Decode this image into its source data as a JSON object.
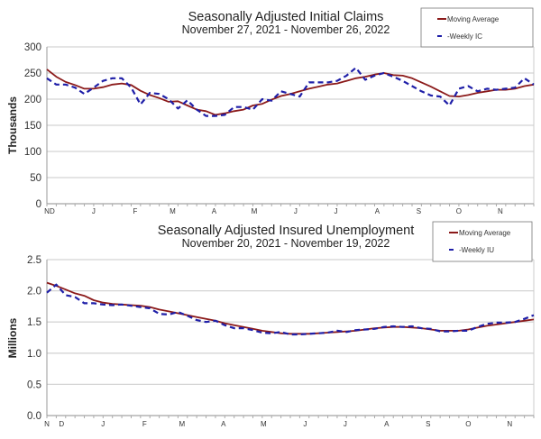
{
  "chart_data": [
    {
      "type": "line",
      "title": "Seasonally Adjusted Initial Claims",
      "subtitle": "November 27, 2021 - November 26, 2022",
      "xlabel": "",
      "ylabel": "Thousands",
      "ylim": [
        0,
        300
      ],
      "yticks": [
        0,
        50,
        100,
        150,
        200,
        250,
        300
      ],
      "grid": true,
      "legend_position": "top-right",
      "x_range": [
        "2021-11-27",
        "2022-11-26"
      ],
      "xtick_labels": [
        {
          "label": "N",
          "date": "2021-11-27"
        },
        {
          "label": "D",
          "date": "2021-12-01"
        },
        {
          "label": "J",
          "date": "2022-01-01"
        },
        {
          "label": "F",
          "date": "2022-02-01"
        },
        {
          "label": "M",
          "date": "2022-03-01"
        },
        {
          "label": "A",
          "date": "2022-04-01"
        },
        {
          "label": "M",
          "date": "2022-05-01"
        },
        {
          "label": "J",
          "date": "2022-06-01"
        },
        {
          "label": "J",
          "date": "2022-07-01"
        },
        {
          "label": "A",
          "date": "2022-08-01"
        },
        {
          "label": "S",
          "date": "2022-09-01"
        },
        {
          "label": "O",
          "date": "2022-10-01"
        },
        {
          "label": "N",
          "date": "2022-11-01"
        }
      ],
      "x": [
        "2021-11-27",
        "2021-12-04",
        "2021-12-11",
        "2021-12-18",
        "2021-12-25",
        "2022-01-01",
        "2022-01-08",
        "2022-01-15",
        "2022-01-22",
        "2022-01-29",
        "2022-02-05",
        "2022-02-12",
        "2022-02-19",
        "2022-02-26",
        "2022-03-05",
        "2022-03-12",
        "2022-03-19",
        "2022-03-26",
        "2022-04-02",
        "2022-04-09",
        "2022-04-16",
        "2022-04-23",
        "2022-04-30",
        "2022-05-07",
        "2022-05-14",
        "2022-05-21",
        "2022-05-28",
        "2022-06-04",
        "2022-06-11",
        "2022-06-18",
        "2022-06-25",
        "2022-07-02",
        "2022-07-09",
        "2022-07-16",
        "2022-07-23",
        "2022-07-30",
        "2022-08-06",
        "2022-08-13",
        "2022-08-20",
        "2022-08-27",
        "2022-09-03",
        "2022-09-10",
        "2022-09-17",
        "2022-09-24",
        "2022-10-01",
        "2022-10-08",
        "2022-10-15",
        "2022-10-22",
        "2022-10-29",
        "2022-11-05",
        "2022-11-12",
        "2022-11-19",
        "2022-11-26"
      ],
      "series": [
        {
          "name": "Moving Average",
          "color": "#8b1a1a",
          "style": "solid",
          "values": [
            257,
            243,
            233,
            227,
            220,
            220,
            223,
            228,
            230,
            227,
            216,
            208,
            202,
            195,
            196,
            188,
            180,
            177,
            170,
            173,
            177,
            180,
            188,
            191,
            199,
            206,
            210,
            215,
            220,
            224,
            228,
            230,
            235,
            240,
            243,
            247,
            250,
            246,
            245,
            240,
            232,
            224,
            215,
            206,
            205,
            208,
            212,
            215,
            218,
            218,
            220,
            225,
            228
          ]
        },
        {
          "name": "-Weekly IC",
          "color": "#1f1fa8",
          "style": "dashed",
          "values": [
            240,
            228,
            228,
            222,
            210,
            222,
            235,
            240,
            240,
            222,
            190,
            212,
            210,
            200,
            182,
            198,
            180,
            168,
            168,
            170,
            185,
            185,
            180,
            200,
            197,
            215,
            210,
            205,
            232,
            232,
            232,
            235,
            245,
            260,
            237,
            245,
            250,
            243,
            235,
            225,
            215,
            207,
            205,
            188,
            220,
            225,
            215,
            220,
            218,
            220,
            222,
            240,
            228
          ]
        }
      ]
    },
    {
      "type": "line",
      "title": "Seasonally Adjusted Insured Unemployment",
      "subtitle": "November 20, 2021 - November 19, 2022",
      "xlabel": "",
      "ylabel": "Millions",
      "ylim": [
        0,
        2.5
      ],
      "yticks": [
        "0.0",
        "0.5",
        "1.0",
        "1.5",
        "2.0",
        "2.5"
      ],
      "grid": true,
      "legend_position": "top-right",
      "x_range": [
        "2021-11-20",
        "2022-11-19"
      ],
      "xtick_labels": [
        {
          "label": "N",
          "date": "2021-11-20"
        },
        {
          "label": "D",
          "date": "2021-12-01"
        },
        {
          "label": "J",
          "date": "2022-01-01"
        },
        {
          "label": "F",
          "date": "2022-02-01"
        },
        {
          "label": "M",
          "date": "2022-03-01"
        },
        {
          "label": "A",
          "date": "2022-04-01"
        },
        {
          "label": "M",
          "date": "2022-05-01"
        },
        {
          "label": "J",
          "date": "2022-06-01"
        },
        {
          "label": "J",
          "date": "2022-07-01"
        },
        {
          "label": "A",
          "date": "2022-08-01"
        },
        {
          "label": "S",
          "date": "2022-09-01"
        },
        {
          "label": "O",
          "date": "2022-10-01"
        },
        {
          "label": "N",
          "date": "2022-11-01"
        }
      ],
      "x": [
        "2021-11-20",
        "2021-11-27",
        "2021-12-04",
        "2021-12-11",
        "2021-12-18",
        "2021-12-25",
        "2022-01-01",
        "2022-01-08",
        "2022-01-15",
        "2022-01-22",
        "2022-01-29",
        "2022-02-05",
        "2022-02-12",
        "2022-02-19",
        "2022-02-26",
        "2022-03-05",
        "2022-03-12",
        "2022-03-19",
        "2022-03-26",
        "2022-04-02",
        "2022-04-09",
        "2022-04-16",
        "2022-04-23",
        "2022-04-30",
        "2022-05-07",
        "2022-05-14",
        "2022-05-21",
        "2022-05-28",
        "2022-06-04",
        "2022-06-11",
        "2022-06-18",
        "2022-06-25",
        "2022-07-02",
        "2022-07-09",
        "2022-07-16",
        "2022-07-23",
        "2022-07-30",
        "2022-08-06",
        "2022-08-13",
        "2022-08-20",
        "2022-08-27",
        "2022-09-03",
        "2022-09-10",
        "2022-09-17",
        "2022-09-24",
        "2022-10-01",
        "2022-10-08",
        "2022-10-15",
        "2022-10-22",
        "2022-10-29",
        "2022-11-05",
        "2022-11-12",
        "2022-11-19"
      ],
      "series": [
        {
          "name": "Moving Average",
          "color": "#8b1a1a",
          "style": "solid",
          "values": [
            2.13,
            2.08,
            2.02,
            1.96,
            1.92,
            1.85,
            1.81,
            1.79,
            1.78,
            1.77,
            1.76,
            1.74,
            1.7,
            1.67,
            1.64,
            1.61,
            1.58,
            1.55,
            1.52,
            1.48,
            1.45,
            1.42,
            1.39,
            1.36,
            1.34,
            1.32,
            1.31,
            1.31,
            1.31,
            1.32,
            1.33,
            1.34,
            1.35,
            1.36,
            1.38,
            1.4,
            1.41,
            1.42,
            1.42,
            1.41,
            1.4,
            1.38,
            1.36,
            1.36,
            1.36,
            1.38,
            1.41,
            1.44,
            1.46,
            1.48,
            1.5,
            1.52,
            1.54
          ]
        },
        {
          "name": "-Weekly IU",
          "color": "#1f1fa8",
          "style": "dashed",
          "values": [
            1.97,
            2.1,
            1.93,
            1.9,
            1.8,
            1.8,
            1.78,
            1.77,
            1.78,
            1.76,
            1.74,
            1.72,
            1.63,
            1.62,
            1.66,
            1.6,
            1.53,
            1.5,
            1.52,
            1.45,
            1.4,
            1.4,
            1.37,
            1.33,
            1.32,
            1.34,
            1.3,
            1.3,
            1.31,
            1.32,
            1.33,
            1.36,
            1.34,
            1.37,
            1.38,
            1.39,
            1.42,
            1.43,
            1.42,
            1.43,
            1.4,
            1.39,
            1.35,
            1.35,
            1.36,
            1.36,
            1.42,
            1.47,
            1.49,
            1.49,
            1.5,
            1.55,
            1.61
          ]
        }
      ]
    }
  ]
}
